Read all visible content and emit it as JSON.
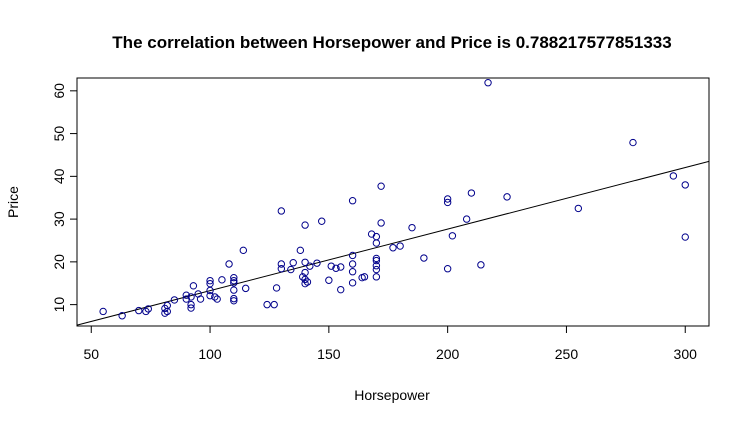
{
  "chart_data": {
    "type": "scatter",
    "title": "The correlation between Horsepower  and  Price  is  0.788217577851333",
    "xlabel": "Horsepower",
    "ylabel": "Price",
    "xlim": [
      44,
      310
    ],
    "ylim": [
      5,
      63
    ],
    "xticks": [
      50,
      100,
      150,
      200,
      250,
      300
    ],
    "yticks": [
      10,
      20,
      30,
      40,
      50,
      60
    ],
    "grid": false,
    "colors": {
      "points": "#00008b",
      "line": "#000000",
      "frame": "#000000"
    },
    "regression_line": {
      "x": [
        44,
        310
      ],
      "y": [
        5.2,
        43.5
      ]
    },
    "points": [
      {
        "x": 55,
        "y": 8.4
      },
      {
        "x": 63,
        "y": 7.4
      },
      {
        "x": 70,
        "y": 8.6
      },
      {
        "x": 73,
        "y": 8.4
      },
      {
        "x": 74,
        "y": 9.0
      },
      {
        "x": 81,
        "y": 8.0
      },
      {
        "x": 81,
        "y": 9.1
      },
      {
        "x": 82,
        "y": 8.4
      },
      {
        "x": 82,
        "y": 9.8
      },
      {
        "x": 85,
        "y": 11.1
      },
      {
        "x": 90,
        "y": 11.3
      },
      {
        "x": 90,
        "y": 12.2
      },
      {
        "x": 92,
        "y": 9.2
      },
      {
        "x": 92,
        "y": 10.0
      },
      {
        "x": 92,
        "y": 11.8
      },
      {
        "x": 93,
        "y": 14.4
      },
      {
        "x": 95,
        "y": 12.5
      },
      {
        "x": 96,
        "y": 11.3
      },
      {
        "x": 100,
        "y": 12.1
      },
      {
        "x": 100,
        "y": 13.3
      },
      {
        "x": 100,
        "y": 14.9
      },
      {
        "x": 100,
        "y": 15.6
      },
      {
        "x": 102,
        "y": 11.8
      },
      {
        "x": 103,
        "y": 11.3
      },
      {
        "x": 105,
        "y": 15.8
      },
      {
        "x": 108,
        "y": 19.5
      },
      {
        "x": 110,
        "y": 10.9
      },
      {
        "x": 110,
        "y": 11.4
      },
      {
        "x": 110,
        "y": 13.4
      },
      {
        "x": 110,
        "y": 15.1
      },
      {
        "x": 110,
        "y": 15.6
      },
      {
        "x": 110,
        "y": 16.3
      },
      {
        "x": 114,
        "y": 22.7
      },
      {
        "x": 115,
        "y": 13.8
      },
      {
        "x": 124,
        "y": 10.0
      },
      {
        "x": 127,
        "y": 10.0
      },
      {
        "x": 128,
        "y": 13.9
      },
      {
        "x": 130,
        "y": 18.4
      },
      {
        "x": 130,
        "y": 19.5
      },
      {
        "x": 130,
        "y": 31.9
      },
      {
        "x": 134,
        "y": 18.2
      },
      {
        "x": 135,
        "y": 19.8
      },
      {
        "x": 138,
        "y": 22.7
      },
      {
        "x": 139,
        "y": 16.5
      },
      {
        "x": 140,
        "y": 14.9
      },
      {
        "x": 140,
        "y": 15.9
      },
      {
        "x": 140,
        "y": 17.5
      },
      {
        "x": 140,
        "y": 19.9
      },
      {
        "x": 140,
        "y": 28.6
      },
      {
        "x": 141,
        "y": 15.3
      },
      {
        "x": 142,
        "y": 19.0
      },
      {
        "x": 145,
        "y": 19.7
      },
      {
        "x": 147,
        "y": 29.5
      },
      {
        "x": 150,
        "y": 15.7
      },
      {
        "x": 151,
        "y": 19.0
      },
      {
        "x": 153,
        "y": 18.5
      },
      {
        "x": 155,
        "y": 13.5
      },
      {
        "x": 155,
        "y": 18.8
      },
      {
        "x": 160,
        "y": 15.1
      },
      {
        "x": 160,
        "y": 17.7
      },
      {
        "x": 160,
        "y": 19.5
      },
      {
        "x": 160,
        "y": 21.5
      },
      {
        "x": 160,
        "y": 34.3
      },
      {
        "x": 164,
        "y": 16.3
      },
      {
        "x": 165,
        "y": 16.5
      },
      {
        "x": 168,
        "y": 26.5
      },
      {
        "x": 170,
        "y": 16.5
      },
      {
        "x": 170,
        "y": 18.2
      },
      {
        "x": 170,
        "y": 19.1
      },
      {
        "x": 170,
        "y": 20.3
      },
      {
        "x": 170,
        "y": 20.8
      },
      {
        "x": 170,
        "y": 24.4
      },
      {
        "x": 170,
        "y": 25.9
      },
      {
        "x": 172,
        "y": 29.1
      },
      {
        "x": 172,
        "y": 37.7
      },
      {
        "x": 177,
        "y": 23.3
      },
      {
        "x": 180,
        "y": 23.7
      },
      {
        "x": 185,
        "y": 28.0
      },
      {
        "x": 190,
        "y": 20.9
      },
      {
        "x": 200,
        "y": 18.4
      },
      {
        "x": 200,
        "y": 33.9
      },
      {
        "x": 200,
        "y": 34.7
      },
      {
        "x": 202,
        "y": 26.1
      },
      {
        "x": 208,
        "y": 30.0
      },
      {
        "x": 210,
        "y": 36.1
      },
      {
        "x": 214,
        "y": 19.3
      },
      {
        "x": 217,
        "y": 61.9
      },
      {
        "x": 225,
        "y": 35.2
      },
      {
        "x": 255,
        "y": 32.5
      },
      {
        "x": 278,
        "y": 47.9
      },
      {
        "x": 295,
        "y": 40.1
      },
      {
        "x": 300,
        "y": 25.8
      },
      {
        "x": 300,
        "y": 38.0
      }
    ]
  }
}
